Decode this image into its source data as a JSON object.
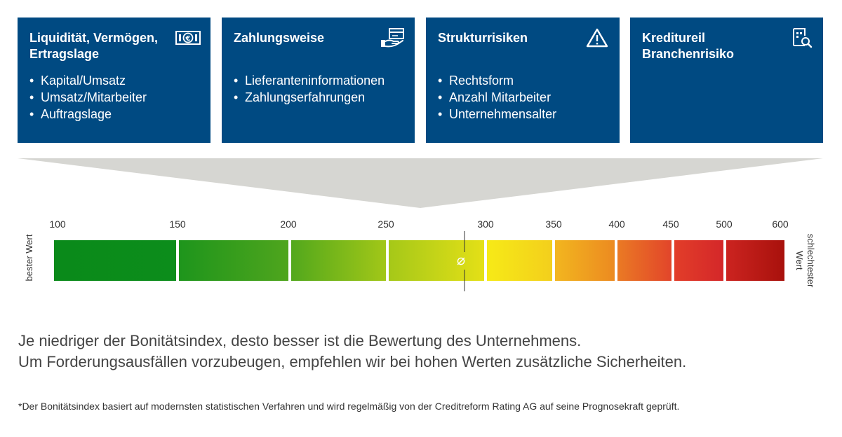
{
  "cards": [
    {
      "title": "Liquidität, Vermögen,\nErtragslage",
      "items": [
        "Kapital/Umsatz",
        "Umsatz/Mitarbeiter",
        "Auftragslage"
      ],
      "icon": "euro-banknote-icon"
    },
    {
      "title": "Zahlungsweise",
      "items": [
        "Lieferanteninformationen",
        "Zahlungserfahrungen"
      ],
      "icon": "payment-hand-icon"
    },
    {
      "title": "Strukturrisiken",
      "items": [
        "Rechtsform",
        "Anzahl Mitarbeiter",
        "Unternehmensalter"
      ],
      "icon": "warning-triangle-icon"
    },
    {
      "title": "Kreditureil\nBranchenrisiko",
      "items": [],
      "icon": "document-search-icon"
    }
  ],
  "scale": {
    "ticks": [
      "100",
      "150",
      "200",
      "250",
      "300",
      "350",
      "400",
      "450",
      "500",
      "600"
    ],
    "left_label": "bester Wert",
    "right_label": "schlechtester Wert",
    "average_symbol": "⌀",
    "colors": [
      "#0b8d1a",
      "#3c9f1e",
      "#8cc11a",
      "#d6de15",
      "#f4e51a",
      "#f09a1f",
      "#e5562a",
      "#d5272a",
      "#b5150f"
    ]
  },
  "text": {
    "line1": "Je niedriger der Bonitätsindex, desto besser ist die Bewertung des Unternehmens.",
    "line2": "Um Forderungsausfällen vorzubeugen, empfehlen wir bei hohen Werten zusätzliche Sicherheiten.",
    "footnote": "*Der Bonitätsindex basiert auf modernsten statistischen Verfahren und wird regelmäßig von der Creditreform Rating AG auf seine Prognosekraft geprüft."
  }
}
